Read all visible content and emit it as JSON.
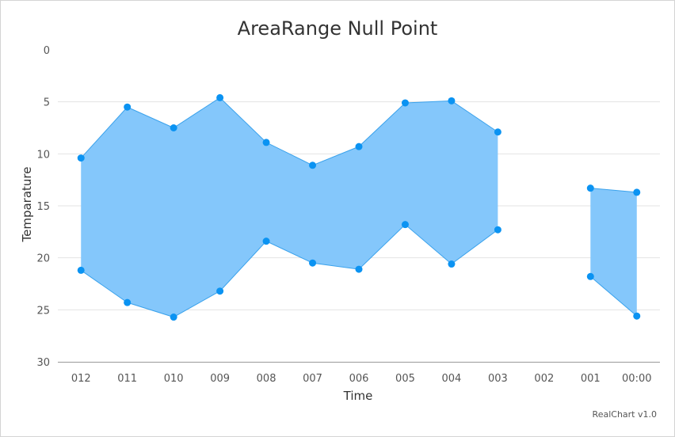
{
  "credits": "RealChart v1.0",
  "chart_data": {
    "type": "arearange",
    "title": "AreaRange Null Point",
    "xlabel": "Time",
    "ylabel": "Temparature",
    "categories": [
      "012",
      "011",
      "010",
      "009",
      "008",
      "007",
      "006",
      "005",
      "004",
      "003",
      "002",
      "001",
      "00:00"
    ],
    "y_reversed": true,
    "ylim": [
      0,
      30
    ],
    "yticks": [
      0,
      5,
      10,
      15,
      20,
      25,
      30
    ],
    "grid": true,
    "color": "#84c7fb",
    "marker_color": "#0b93f2",
    "line_color": "#3aa2ec",
    "series": [
      {
        "low": [
          10.4,
          5.5,
          7.5,
          4.6,
          8.9,
          11.1,
          9.3,
          5.1,
          4.9,
          7.9,
          null,
          13.3,
          13.7
        ],
        "high": [
          21.2,
          24.3,
          25.7,
          23.2,
          18.4,
          20.5,
          21.1,
          16.8,
          20.6,
          17.3,
          null,
          21.8,
          25.6
        ]
      }
    ]
  }
}
